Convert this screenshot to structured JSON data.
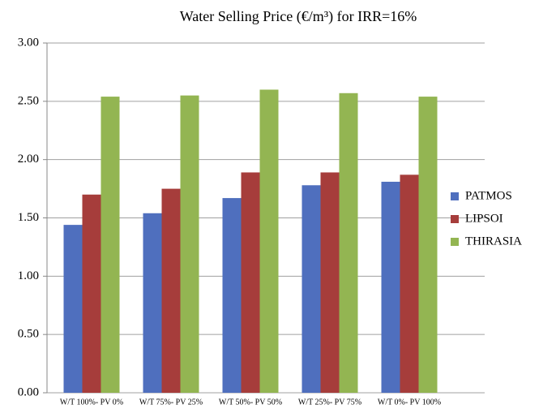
{
  "chart_data": {
    "type": "bar",
    "title": "Water Selling Price (€/m³) for IRR=16%",
    "categories": [
      "W/T 100%- PV 0%",
      "W/T 75%- PV 25%",
      "W/T 50%- PV 50%",
      "W/T 25%- PV 75%",
      "W/T 0%- PV 100%"
    ],
    "series": [
      {
        "name": "PATMOS",
        "color": "#4f6fbe",
        "values": [
          1.44,
          1.54,
          1.67,
          1.78,
          1.81
        ]
      },
      {
        "name": "LIPSOI",
        "color": "#a63d3b",
        "values": [
          1.7,
          1.75,
          1.89,
          1.89,
          1.87
        ]
      },
      {
        "name": "THIRASIA",
        "color": "#93b552",
        "values": [
          2.54,
          2.55,
          2.6,
          2.57,
          2.54
        ]
      }
    ],
    "ylim": [
      0,
      3
    ],
    "yticks": [
      {
        "value": 0,
        "label": "0.00"
      },
      {
        "value": 0.5,
        "label": "0.50"
      },
      {
        "value": 1,
        "label": "1.00"
      },
      {
        "value": 1.5,
        "label": "1.50"
      },
      {
        "value": 2,
        "label": "2.00"
      },
      {
        "value": 2.5,
        "label": "2.50"
      },
      {
        "value": 3,
        "label": "3.00"
      }
    ],
    "grid": true,
    "legend": "right"
  }
}
